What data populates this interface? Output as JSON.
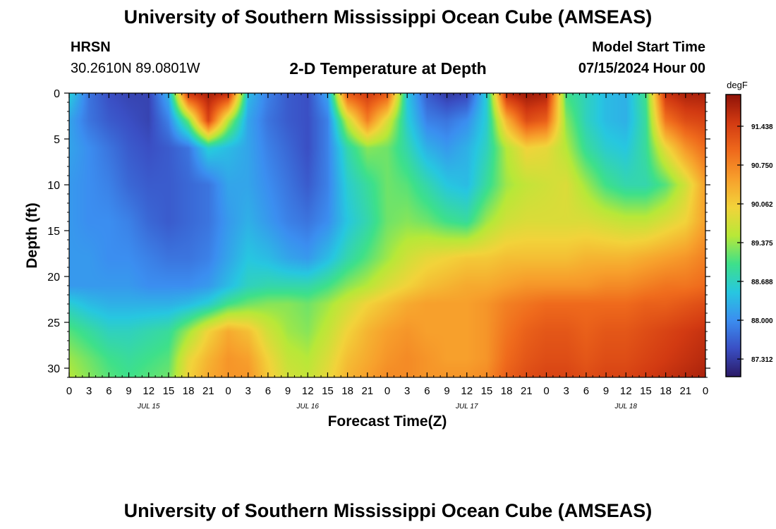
{
  "page": {
    "title": "University of Southern Mississippi Ocean Cube (AMSEAS)",
    "footer_title": "University of Southern Mississippi Ocean Cube (AMSEAS)",
    "station": "HRSN",
    "coords": "30.2610N  89.0801W",
    "plot_title": "2-D Temperature at Depth",
    "model_start_label": "Model Start Time",
    "model_start_value": "07/15/2024 Hour 00"
  },
  "chart_data": {
    "type": "heatmap",
    "title": "2-D Temperature at Depth",
    "xlabel": "Forecast Time(Z)",
    "ylabel": "Depth (ft)",
    "x_range_hours": [
      0,
      96
    ],
    "y_range_ft": [
      0,
      31
    ],
    "x_tick_labels": [
      "0",
      "3",
      "6",
      "9",
      "12",
      "15",
      "18",
      "21",
      "0",
      "3",
      "6",
      "9",
      "12",
      "15",
      "18",
      "21",
      "0",
      "3",
      "6",
      "9",
      "12",
      "15",
      "18",
      "21",
      "0",
      "3",
      "6",
      "9",
      "12",
      "15",
      "18",
      "21",
      "0"
    ],
    "y_ticks": [
      "0",
      "5",
      "10",
      "15",
      "20",
      "25",
      "30"
    ],
    "date_labels": [
      "JUL 15",
      "JUL 16",
      "JUL 17",
      "JUL 18"
    ],
    "colorbar": {
      "unit": "degF",
      "min": 87.0,
      "max": 92.0,
      "ticks": [
        "91.438",
        "90.750",
        "90.062",
        "89.375",
        "88.688",
        "88.000",
        "87.312"
      ],
      "colors": [
        "#2b1a66",
        "#3a4fc4",
        "#3b8ef0",
        "#27c7e0",
        "#3ee08a",
        "#b8e838",
        "#f2d33a",
        "#f7a02c",
        "#ef6a1c",
        "#d23a12",
        "#8f1208"
      ]
    },
    "depth_ft": [
      0,
      3,
      6,
      10,
      14,
      18,
      21,
      23,
      26,
      29,
      31
    ],
    "time_hours": [
      0,
      3,
      6,
      9,
      12,
      15,
      18,
      21,
      24,
      27,
      30,
      33,
      36,
      39,
      42,
      45,
      48,
      51,
      54,
      57,
      60,
      63,
      66,
      69,
      72,
      75,
      78,
      81,
      84,
      87,
      90,
      93,
      96
    ],
    "temperature_degF": [
      [
        88.6,
        87.8,
        87.5,
        87.4,
        87.4,
        88.3,
        91.6,
        91.8,
        91.7,
        88.4,
        87.9,
        87.6,
        87.5,
        88.2,
        91.2,
        91.5,
        91.2,
        88.5,
        87.6,
        87.3,
        87.4,
        88.6,
        91.7,
        91.9,
        91.8,
        89.0,
        88.7,
        88.4,
        88.3,
        89.0,
        91.6,
        91.8,
        91.8
      ],
      [
        88.2,
        87.8,
        87.6,
        87.5,
        87.4,
        87.9,
        89.2,
        91.4,
        89.5,
        88.2,
        87.8,
        87.6,
        87.5,
        87.9,
        89.6,
        90.8,
        89.8,
        88.6,
        87.9,
        87.8,
        88.0,
        88.6,
        90.3,
        91.3,
        91.1,
        89.3,
        88.7,
        88.4,
        88.3,
        88.9,
        90.9,
        91.3,
        91.4
      ],
      [
        88.2,
        88.0,
        87.8,
        87.6,
        87.5,
        87.6,
        87.8,
        88.6,
        88.4,
        88.2,
        87.9,
        87.7,
        87.5,
        87.9,
        88.8,
        89.3,
        89.2,
        88.8,
        88.3,
        88.1,
        88.3,
        88.7,
        89.5,
        90.0,
        89.9,
        89.5,
        88.9,
        88.6,
        88.5,
        88.9,
        89.9,
        90.6,
        91.0
      ],
      [
        88.1,
        88.0,
        87.9,
        87.7,
        87.6,
        87.6,
        87.7,
        87.8,
        88.2,
        88.2,
        88.0,
        87.8,
        87.6,
        87.9,
        88.6,
        88.9,
        89.2,
        89.1,
        88.8,
        88.5,
        88.4,
        88.9,
        89.4,
        89.6,
        89.7,
        89.8,
        89.4,
        89.0,
        88.8,
        88.8,
        89.1,
        89.7,
        90.5
      ],
      [
        88.1,
        88.0,
        88.0,
        87.9,
        87.7,
        87.6,
        87.7,
        87.8,
        88.1,
        88.3,
        88.1,
        87.9,
        87.8,
        88.0,
        88.5,
        88.8,
        89.2,
        89.3,
        89.2,
        89.0,
        88.9,
        89.4,
        89.7,
        89.8,
        89.8,
        89.8,
        89.8,
        89.7,
        89.6,
        89.6,
        89.8,
        90.0,
        90.5
      ],
      [
        88.1,
        88.1,
        88.0,
        88.0,
        87.9,
        87.8,
        87.8,
        87.9,
        88.2,
        88.5,
        88.4,
        88.2,
        88.1,
        88.4,
        88.8,
        89.1,
        89.4,
        89.7,
        89.9,
        90.0,
        90.1,
        90.1,
        90.2,
        90.2,
        90.2,
        90.2,
        90.3,
        90.3,
        90.3,
        90.4,
        90.5,
        90.6,
        90.8
      ],
      [
        88.1,
        88.1,
        88.1,
        88.1,
        88.0,
        88.0,
        88.0,
        88.1,
        88.4,
        88.7,
        88.8,
        88.8,
        88.8,
        89.0,
        89.3,
        89.5,
        89.8,
        90.0,
        90.2,
        90.3,
        90.4,
        90.4,
        90.5,
        90.6,
        90.6,
        90.6,
        90.6,
        90.7,
        90.7,
        90.8,
        90.9,
        90.9,
        91.0
      ],
      [
        88.6,
        88.4,
        88.3,
        88.3,
        88.3,
        88.3,
        88.4,
        88.6,
        89.0,
        89.2,
        89.3,
        89.3,
        89.2,
        89.4,
        89.7,
        90.0,
        90.2,
        90.4,
        90.5,
        90.5,
        90.5,
        90.6,
        90.8,
        90.9,
        91.0,
        91.0,
        91.0,
        91.0,
        91.0,
        91.1,
        91.1,
        91.2,
        91.3
      ],
      [
        89.1,
        88.9,
        88.7,
        88.7,
        88.8,
        88.9,
        89.4,
        90.0,
        90.4,
        90.2,
        89.7,
        89.4,
        89.3,
        89.6,
        90.0,
        90.3,
        90.5,
        90.6,
        90.5,
        90.5,
        90.5,
        90.6,
        90.9,
        91.1,
        91.2,
        91.2,
        91.1,
        91.2,
        91.2,
        91.3,
        91.4,
        91.5,
        91.6
      ],
      [
        89.4,
        89.2,
        89.0,
        88.9,
        89.0,
        89.1,
        89.9,
        90.3,
        90.6,
        90.5,
        90.0,
        89.6,
        89.5,
        89.8,
        90.2,
        90.4,
        90.6,
        90.7,
        90.6,
        90.5,
        90.5,
        90.6,
        91.0,
        91.2,
        91.3,
        91.3,
        91.2,
        91.3,
        91.3,
        91.4,
        91.5,
        91.6,
        91.7
      ],
      [
        89.5,
        89.3,
        89.1,
        89.0,
        89.1,
        89.2,
        90.0,
        90.4,
        90.6,
        90.6,
        90.1,
        89.7,
        89.6,
        89.9,
        90.3,
        90.5,
        90.7,
        90.7,
        90.6,
        90.6,
        90.6,
        90.7,
        91.1,
        91.3,
        91.4,
        91.4,
        91.3,
        91.4,
        91.4,
        91.5,
        91.6,
        91.7,
        91.8
      ]
    ]
  }
}
